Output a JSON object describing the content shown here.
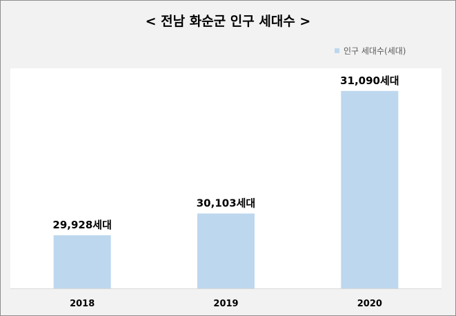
{
  "chart_data": {
    "type": "bar",
    "title": "< 전남 화순군 인구 세대수 >",
    "categories": [
      "2018",
      "2019",
      "2020"
    ],
    "series": [
      {
        "name": "인구 세대수(세대)",
        "values": [
          29928,
          30103,
          31090
        ],
        "labels": [
          "29,928세대",
          "30,103세대",
          "31,090세대"
        ]
      }
    ],
    "ylim": [
      29500,
      31200
    ],
    "grid": false,
    "legend": "top-right",
    "colors": {
      "bar": "#bdd7ee",
      "plot_bg": "#ffffff",
      "page_bg": "#f2f2f2",
      "axis": "#d9d9d9"
    }
  }
}
